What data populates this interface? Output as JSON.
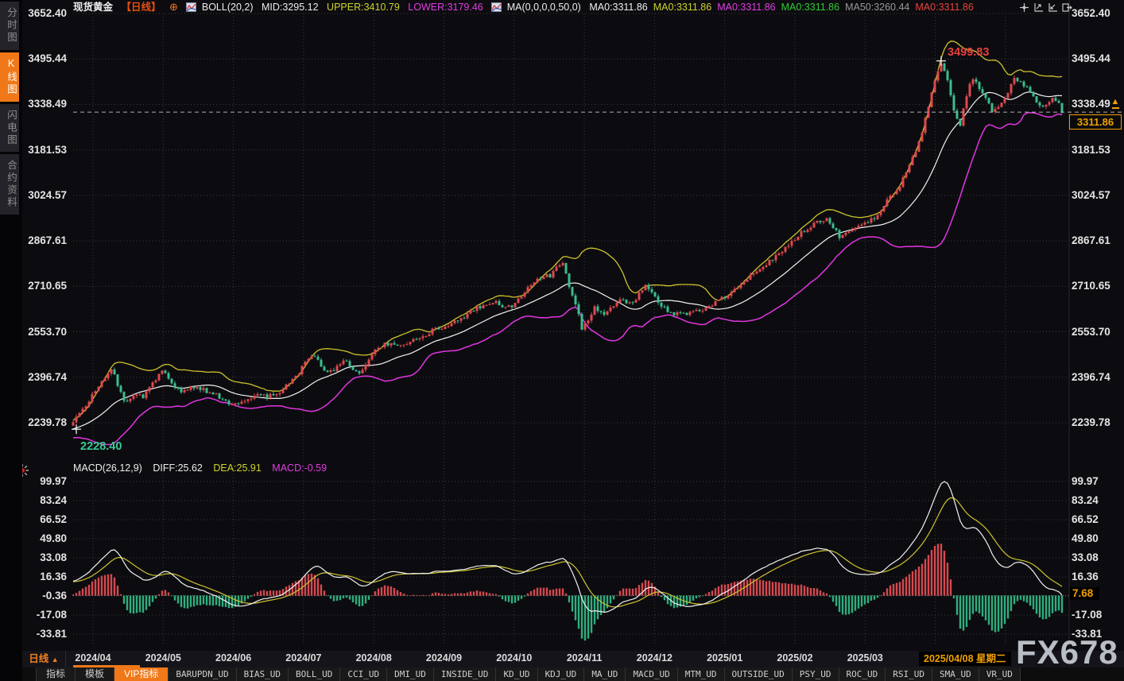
{
  "watermark": "FX678",
  "sidebar": {
    "items": [
      {
        "label": "分时图",
        "active": false
      },
      {
        "label": "K线图",
        "active": true
      },
      {
        "label": "闪电图",
        "active": false
      },
      {
        "label": "合约资料",
        "active": false
      }
    ]
  },
  "header": {
    "symbol": "现货黄金",
    "period": "【日线】",
    "boll_label": "BOLL(20,2)",
    "boll_mid": "MID:3295.12",
    "boll_upper": "UPPER:3410.79",
    "boll_lower": "LOWER:3179.46",
    "ma_label": "MA(0,0,0,0,50,0)",
    "ma_values": [
      {
        "text": "MA0:3311.86",
        "color": "#f0f0f0"
      },
      {
        "text": "MA0:3311.86",
        "color": "#cdd32e"
      },
      {
        "text": "MA0:3311.86",
        "color": "#e23ce2"
      },
      {
        "text": "MA0:3311.86",
        "color": "#33cc33"
      },
      {
        "text": "MA50:3260.44",
        "color": "#999999"
      },
      {
        "text": "MA0:3311.86",
        "color": "#e8433c"
      }
    ]
  },
  "top_toolbar": {
    "icons": [
      "move-chart-icon",
      "axis-zoom-out-icon",
      "axis-zoom-in-icon",
      "page-forward-icon"
    ]
  },
  "price_pane": {
    "axis_labels": [
      "3652.40",
      "3495.44",
      "3338.49",
      "3181.53",
      "3024.57",
      "2867.61",
      "2710.65",
      "2553.70",
      "2396.74",
      "2239.78"
    ],
    "current_price": "3311.86",
    "high_annotation": "3499.83",
    "low_annotation": "2228.40"
  },
  "macd_pane": {
    "title": "MACD(26,12,9)",
    "diff_label": "DIFF:25.62",
    "dea_label": "DEA:25.91",
    "macd_label": "MACD:-0.59",
    "axis_labels": [
      "99.97",
      "83.24",
      "66.52",
      "49.80",
      "33.08",
      "16.36",
      "-0.36",
      "-17.08",
      "-33.81"
    ],
    "current_value": "7.68"
  },
  "time_axis": {
    "period_label": "日线",
    "months": [
      "2024/04",
      "2024/05",
      "2024/06",
      "2024/07",
      "2024/08",
      "2024/09",
      "2024/10",
      "2024/11",
      "2024/12",
      "2025/01",
      "2025/02",
      "2025/03",
      "20"
    ],
    "crosshair_date": "2025/04/08 星期二"
  },
  "bottom_tabs": {
    "items": [
      {
        "label": "指标",
        "active": false
      },
      {
        "label": "模板",
        "active": false
      },
      {
        "label": "VIP指标",
        "active": true
      },
      {
        "label": "BARUPDN_UD",
        "active": false
      },
      {
        "label": "BIAS_UD",
        "active": false
      },
      {
        "label": "BOLL_UD",
        "active": false
      },
      {
        "label": "CCI_UD",
        "active": false
      },
      {
        "label": "DMI_UD",
        "active": false
      },
      {
        "label": "INSIDE_UD",
        "active": false
      },
      {
        "label": "KD_UD",
        "active": false
      },
      {
        "label": "KDJ_UD",
        "active": false
      },
      {
        "label": "MA_UD",
        "active": false
      },
      {
        "label": "MACD_UD",
        "active": false
      },
      {
        "label": "MTM_UD",
        "active": false
      },
      {
        "label": "OUTSIDE_UD",
        "active": false
      },
      {
        "label": "PSY_UD",
        "active": false
      },
      {
        "label": "ROC_UD",
        "active": false
      },
      {
        "label": "RSI_UD",
        "active": false
      },
      {
        "label": "SMA_UD",
        "active": false
      },
      {
        "label": "VR_UD",
        "active": false
      }
    ]
  },
  "chart_data": {
    "type": "candlestick+macd",
    "symbol": "现货黄金 (Spot Gold)",
    "period": "日线 (Daily)",
    "x_range": [
      "2024/04",
      "2025/06"
    ],
    "price_axis_ticks": [
      3652.4,
      3495.44,
      3338.49,
      3181.53,
      3024.57,
      2867.61,
      2710.65,
      2553.7,
      2396.74,
      2239.78
    ],
    "macd_axis_ticks": [
      99.97,
      83.24,
      66.52,
      49.8,
      33.08,
      16.36,
      -0.36,
      -17.08,
      -33.81
    ],
    "key_values": {
      "high": 3499.83,
      "low": 2228.4,
      "last_close": 3311.86,
      "boll_mid": 3295.12,
      "boll_upper": 3410.79,
      "boll_lower": 3179.46,
      "ma50": 3260.44,
      "diff": 25.62,
      "dea": 25.91,
      "macd": -0.59
    },
    "indicators": {
      "boll_period": 20,
      "boll_dev": 2,
      "ma_period": 50,
      "macd_params": [
        26,
        12,
        9
      ]
    },
    "price_anchors": [
      [
        0,
        2248
      ],
      [
        3,
        2280
      ],
      [
        6,
        2335
      ],
      [
        9,
        2380
      ],
      [
        12,
        2428
      ],
      [
        14,
        2370
      ],
      [
        16,
        2315
      ],
      [
        19,
        2335
      ],
      [
        22,
        2332
      ],
      [
        25,
        2375
      ],
      [
        28,
        2418
      ],
      [
        31,
        2380
      ],
      [
        34,
        2348
      ],
      [
        37,
        2362
      ],
      [
        40,
        2358
      ],
      [
        43,
        2342
      ],
      [
        46,
        2330
      ],
      [
        49,
        2310
      ],
      [
        52,
        2308
      ],
      [
        55,
        2325
      ],
      [
        58,
        2338
      ],
      [
        61,
        2330
      ],
      [
        64,
        2335
      ],
      [
        67,
        2368
      ],
      [
        70,
        2398
      ],
      [
        73,
        2448
      ],
      [
        75,
        2472
      ],
      [
        78,
        2438
      ],
      [
        80,
        2412
      ],
      [
        83,
        2430
      ],
      [
        86,
        2455
      ],
      [
        88,
        2425
      ],
      [
        90,
        2405
      ],
      [
        93,
        2455
      ],
      [
        96,
        2502
      ],
      [
        99,
        2512
      ],
      [
        102,
        2508
      ],
      [
        105,
        2515
      ],
      [
        108,
        2525
      ],
      [
        111,
        2545
      ],
      [
        114,
        2565
      ],
      [
        117,
        2572
      ],
      [
        120,
        2588
      ],
      [
        123,
        2608
      ],
      [
        126,
        2628
      ],
      [
        129,
        2648
      ],
      [
        132,
        2658
      ],
      [
        135,
        2645
      ],
      [
        138,
        2642
      ],
      [
        141,
        2682
      ],
      [
        144,
        2722
      ],
      [
        147,
        2738
      ],
      [
        150,
        2748
      ],
      [
        152,
        2772
      ],
      [
        154,
        2788
      ],
      [
        156,
        2712
      ],
      [
        158,
        2652
      ],
      [
        160,
        2568
      ],
      [
        162,
        2598
      ],
      [
        164,
        2635
      ],
      [
        166,
        2622
      ],
      [
        168,
        2618
      ],
      [
        170,
        2642
      ],
      [
        172,
        2662
      ],
      [
        174,
        2652
      ],
      [
        176,
        2648
      ],
      [
        178,
        2688
      ],
      [
        180,
        2718
      ],
      [
        183,
        2672
      ],
      [
        186,
        2635
      ],
      [
        189,
        2612
      ],
      [
        192,
        2618
      ],
      [
        195,
        2622
      ],
      [
        198,
        2632
      ],
      [
        201,
        2648
      ],
      [
        204,
        2668
      ],
      [
        207,
        2692
      ],
      [
        210,
        2718
      ],
      [
        213,
        2748
      ],
      [
        216,
        2772
      ],
      [
        219,
        2798
      ],
      [
        222,
        2822
      ],
      [
        225,
        2858
      ],
      [
        228,
        2888
      ],
      [
        231,
        2912
      ],
      [
        234,
        2932
      ],
      [
        237,
        2948
      ],
      [
        239,
        2918
      ],
      [
        241,
        2882
      ],
      [
        243,
        2892
      ],
      [
        245,
        2908
      ],
      [
        248,
        2922
      ],
      [
        251,
        2938
      ],
      [
        254,
        2972
      ],
      [
        257,
        3022
      ],
      [
        260,
        3058
      ],
      [
        263,
        3122
      ],
      [
        265,
        3180
      ],
      [
        267,
        3248
      ],
      [
        269,
        3332
      ],
      [
        271,
        3422
      ],
      [
        273,
        3488
      ],
      [
        275,
        3428
      ],
      [
        277,
        3315
      ],
      [
        279,
        3268
      ],
      [
        281,
        3372
      ],
      [
        283,
        3432
      ],
      [
        285,
        3395
      ],
      [
        287,
        3362
      ],
      [
        289,
        3308
      ],
      [
        291,
        3332
      ],
      [
        293,
        3362
      ],
      [
        296,
        3422
      ],
      [
        298,
        3412
      ],
      [
        300,
        3398
      ],
      [
        302,
        3362
      ],
      [
        304,
        3342
      ],
      [
        306,
        3332
      ],
      [
        308,
        3368
      ],
      [
        310,
        3338
      ],
      [
        311,
        3312
      ]
    ],
    "colors": {
      "up": "#e0484e",
      "down": "#3bbd8d",
      "boll_upper": "#cdc22e",
      "boll_mid": "#f2f2f2",
      "boll_lower": "#e135e1",
      "ma50": "#8f8f8f",
      "diff": "#f2f2f2",
      "dea": "#cdc22e",
      "hist_pos": "#d6494f",
      "hist_neg": "#2fae7d",
      "accent_orange": "#f07818",
      "badge_orange": "#f0a000"
    }
  }
}
